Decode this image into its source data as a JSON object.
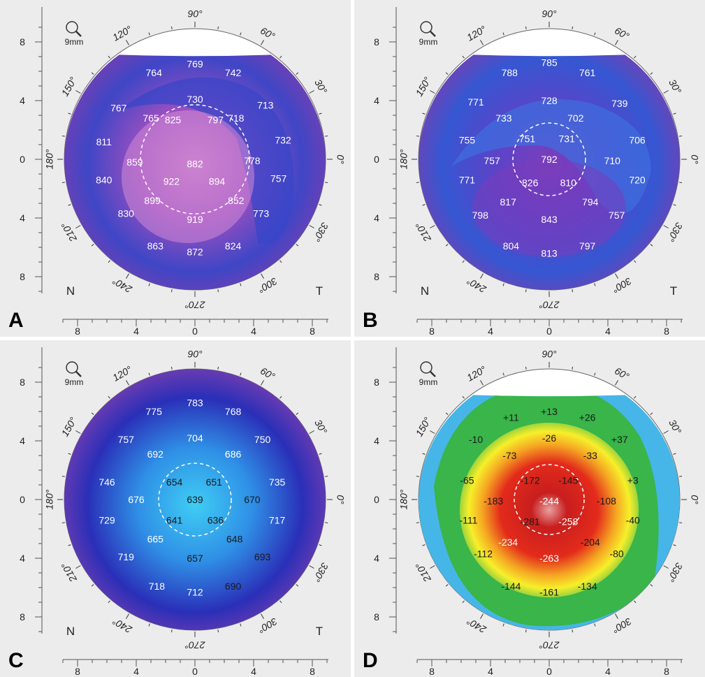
{
  "colors": {
    "panel_bg": "#ececec",
    "ruler": "#555555",
    "dashed_circle": "#ffffff",
    "value_light": "#ffffff",
    "value_dark": "#1a1a1a"
  },
  "common": {
    "zoom_label": "9mm",
    "zoom_icon": "magnifier-icon",
    "nasal_label": "N",
    "temporal_label": "T",
    "angle_labels": [
      "90°",
      "120°",
      "150°",
      "180°",
      "210°",
      "240°",
      "270°",
      "300°",
      "330°",
      "0°",
      "30°",
      "60°"
    ],
    "ruler_labels": [
      "8",
      "4",
      "0",
      "4",
      "8"
    ]
  },
  "panels": [
    {
      "id": "A",
      "label": "A",
      "map_type": "thickness",
      "value_color": "light",
      "show_nt": true,
      "missing_top_arc": true,
      "colors": {
        "center": "#c479c9",
        "mid": "#9a4fc0",
        "edge": "#7a3fb0",
        "band": "#3f46c6"
      },
      "values": [
        {
          "v": "769",
          "x": 0,
          "y": 6.5
        },
        {
          "v": "764",
          "x": -2.8,
          "y": 5.9
        },
        {
          "v": "742",
          "x": 2.6,
          "y": 5.9
        },
        {
          "v": "767",
          "x": -5.2,
          "y": 3.5
        },
        {
          "v": "730",
          "x": 0,
          "y": 4.1
        },
        {
          "v": "713",
          "x": 4.8,
          "y": 3.7
        },
        {
          "v": "765",
          "x": -3.0,
          "y": 2.8
        },
        {
          "v": "718",
          "x": 2.8,
          "y": 2.8
        },
        {
          "v": "811",
          "x": -6.2,
          "y": 1.2
        },
        {
          "v": "825",
          "x": -1.5,
          "y": 2.7
        },
        {
          "v": "797",
          "x": 1.4,
          "y": 2.7
        },
        {
          "v": "732",
          "x": 6.0,
          "y": 1.3
        },
        {
          "v": "859",
          "x": -4.1,
          "y": -0.2
        },
        {
          "v": "882",
          "x": 0,
          "y": -0.3
        },
        {
          "v": "778",
          "x": 3.9,
          "y": -0.1
        },
        {
          "v": "840",
          "x": -6.2,
          "y": -1.4
        },
        {
          "v": "922",
          "x": -1.6,
          "y": -1.5
        },
        {
          "v": "894",
          "x": 1.5,
          "y": -1.5
        },
        {
          "v": "757",
          "x": 5.7,
          "y": -1.3
        },
        {
          "v": "899",
          "x": -2.9,
          "y": -2.8
        },
        {
          "v": "852",
          "x": 2.8,
          "y": -2.8
        },
        {
          "v": "830",
          "x": -4.7,
          "y": -3.7
        },
        {
          "v": "919",
          "x": 0,
          "y": -4.1
        },
        {
          "v": "773",
          "x": 4.5,
          "y": -3.7
        },
        {
          "v": "863",
          "x": -2.7,
          "y": -5.9
        },
        {
          "v": "872",
          "x": 0,
          "y": -6.3
        },
        {
          "v": "824",
          "x": 2.6,
          "y": -5.9
        }
      ]
    },
    {
      "id": "B",
      "label": "B",
      "map_type": "thickness",
      "value_color": "light",
      "show_nt": true,
      "missing_top_arc": true,
      "colors": {
        "center": "#7a3fbc",
        "mid": "#5a44c8",
        "edge": "#7a3fb0",
        "band": "#3557d2"
      },
      "values": [
        {
          "v": "785",
          "x": 0,
          "y": 6.6
        },
        {
          "v": "788",
          "x": -2.7,
          "y": 5.9
        },
        {
          "v": "761",
          "x": 2.6,
          "y": 5.9
        },
        {
          "v": "771",
          "x": -5.0,
          "y": 3.9
        },
        {
          "v": "728",
          "x": 0,
          "y": 4.0
        },
        {
          "v": "739",
          "x": 4.8,
          "y": 3.8
        },
        {
          "v": "733",
          "x": -3.1,
          "y": 2.8
        },
        {
          "v": "702",
          "x": 1.8,
          "y": 2.8
        },
        {
          "v": "755",
          "x": -5.6,
          "y": 1.3
        },
        {
          "v": "751",
          "x": -1.5,
          "y": 1.4
        },
        {
          "v": "731",
          "x": 1.2,
          "y": 1.4
        },
        {
          "v": "706",
          "x": 6.0,
          "y": 1.3
        },
        {
          "v": "757",
          "x": -3.9,
          "y": -0.1
        },
        {
          "v": "792",
          "x": 0,
          "y": 0.0
        },
        {
          "v": "710",
          "x": 4.3,
          "y": -0.1
        },
        {
          "v": "771",
          "x": -5.6,
          "y": -1.4
        },
        {
          "v": "826",
          "x": -1.3,
          "y": -1.6
        },
        {
          "v": "810",
          "x": 1.3,
          "y": -1.6
        },
        {
          "v": "720",
          "x": 6.0,
          "y": -1.4
        },
        {
          "v": "817",
          "x": -2.8,
          "y": -2.9
        },
        {
          "v": "794",
          "x": 2.8,
          "y": -2.9
        },
        {
          "v": "798",
          "x": -4.7,
          "y": -3.8
        },
        {
          "v": "843",
          "x": 0,
          "y": -4.1
        },
        {
          "v": "757",
          "x": 4.6,
          "y": -3.8
        },
        {
          "v": "804",
          "x": -2.6,
          "y": -5.9
        },
        {
          "v": "813",
          "x": 0,
          "y": -6.4
        },
        {
          "v": "797",
          "x": 2.6,
          "y": -5.9
        }
      ]
    },
    {
      "id": "C",
      "label": "C",
      "map_type": "thickness",
      "value_color": "mixed",
      "show_nt": true,
      "missing_top_arc": false,
      "colors": {
        "center": "#3fcdf4",
        "mid": "#2f8fe6",
        "edge": "#7a3fb0",
        "band": "#2a2fb8"
      },
      "values": [
        {
          "v": "783",
          "x": 0,
          "y": 6.6,
          "c": "light"
        },
        {
          "v": "775",
          "x": -2.8,
          "y": 6.0,
          "c": "light"
        },
        {
          "v": "768",
          "x": 2.6,
          "y": 6.0,
          "c": "light"
        },
        {
          "v": "757",
          "x": -4.7,
          "y": 4.1,
          "c": "light"
        },
        {
          "v": "704",
          "x": 0,
          "y": 4.2,
          "c": "light"
        },
        {
          "v": "750",
          "x": 4.6,
          "y": 4.1,
          "c": "light"
        },
        {
          "v": "692",
          "x": -2.7,
          "y": 3.1,
          "c": "light"
        },
        {
          "v": "686",
          "x": 2.6,
          "y": 3.1,
          "c": "light"
        },
        {
          "v": "746",
          "x": -6.0,
          "y": 1.2,
          "c": "light"
        },
        {
          "v": "654",
          "x": -1.4,
          "y": 1.2,
          "c": "dark"
        },
        {
          "v": "651",
          "x": 1.3,
          "y": 1.2,
          "c": "dark"
        },
        {
          "v": "735",
          "x": 5.6,
          "y": 1.2,
          "c": "light"
        },
        {
          "v": "676",
          "x": -4.0,
          "y": 0,
          "c": "light"
        },
        {
          "v": "639",
          "x": 0,
          "y": 0,
          "c": "dark"
        },
        {
          "v": "670",
          "x": 3.9,
          "y": 0,
          "c": "dark"
        },
        {
          "v": "729",
          "x": -6.0,
          "y": -1.4,
          "c": "light"
        },
        {
          "v": "641",
          "x": -1.4,
          "y": -1.4,
          "c": "dark"
        },
        {
          "v": "636",
          "x": 1.4,
          "y": -1.4,
          "c": "dark"
        },
        {
          "v": "717",
          "x": 5.6,
          "y": -1.4,
          "c": "light"
        },
        {
          "v": "665",
          "x": -2.7,
          "y": -2.7,
          "c": "light"
        },
        {
          "v": "648",
          "x": 2.7,
          "y": -2.7,
          "c": "dark"
        },
        {
          "v": "719",
          "x": -4.7,
          "y": -3.9,
          "c": "light"
        },
        {
          "v": "657",
          "x": 0,
          "y": -4.0,
          "c": "dark"
        },
        {
          "v": "693",
          "x": 4.6,
          "y": -3.9,
          "c": "dark"
        },
        {
          "v": "718",
          "x": -2.6,
          "y": -5.9,
          "c": "light"
        },
        {
          "v": "712",
          "x": 0,
          "y": -6.3,
          "c": "light"
        },
        {
          "v": "690",
          "x": 2.6,
          "y": -5.9,
          "c": "dark"
        }
      ]
    },
    {
      "id": "D",
      "label": "D",
      "map_type": "difference",
      "value_color": "mixed",
      "show_nt": false,
      "missing_top_arc": true,
      "values": [
        {
          "v": "+11",
          "x": -2.6,
          "y": 5.6,
          "c": "dark"
        },
        {
          "v": "+13",
          "x": 0,
          "y": 6.0,
          "c": "dark"
        },
        {
          "v": "+26",
          "x": 2.6,
          "y": 5.6,
          "c": "dark"
        },
        {
          "v": "-10",
          "x": -5.0,
          "y": 4.1,
          "c": "dark"
        },
        {
          "v": "-26",
          "x": 0,
          "y": 4.2,
          "c": "dark"
        },
        {
          "v": "+37",
          "x": 4.8,
          "y": 4.1,
          "c": "dark"
        },
        {
          "v": "-73",
          "x": -2.7,
          "y": 3.0,
          "c": "dark"
        },
        {
          "v": "-33",
          "x": 2.8,
          "y": 3.0,
          "c": "dark"
        },
        {
          "v": "-65",
          "x": -5.6,
          "y": 1.3,
          "c": "dark"
        },
        {
          "v": "-172",
          "x": -1.3,
          "y": 1.3,
          "c": "dark"
        },
        {
          "v": "-145",
          "x": 1.3,
          "y": 1.3,
          "c": "dark"
        },
        {
          "v": "+3",
          "x": 5.7,
          "y": 1.3,
          "c": "dark"
        },
        {
          "v": "-183",
          "x": -3.8,
          "y": -0.1,
          "c": "dark"
        },
        {
          "v": "-244",
          "x": 0,
          "y": -0.1,
          "c": "light"
        },
        {
          "v": "-108",
          "x": 3.9,
          "y": -0.1,
          "c": "dark"
        },
        {
          "v": "-111",
          "x": -5.5,
          "y": -1.4,
          "c": "dark"
        },
        {
          "v": "-281",
          "x": -1.3,
          "y": -1.5,
          "c": "dark"
        },
        {
          "v": "-258",
          "x": 1.3,
          "y": -1.5,
          "c": "light"
        },
        {
          "v": "-40",
          "x": 5.7,
          "y": -1.4,
          "c": "dark"
        },
        {
          "v": "-234",
          "x": -2.8,
          "y": -2.9,
          "c": "light"
        },
        {
          "v": "-204",
          "x": 2.8,
          "y": -2.9,
          "c": "dark"
        },
        {
          "v": "-112",
          "x": -4.5,
          "y": -3.7,
          "c": "dark"
        },
        {
          "v": "-263",
          "x": 0,
          "y": -4.0,
          "c": "light"
        },
        {
          "v": "-80",
          "x": 4.6,
          "y": -3.7,
          "c": "dark"
        },
        {
          "v": "-144",
          "x": -2.6,
          "y": -5.9,
          "c": "dark"
        },
        {
          "v": "-161",
          "x": 0,
          "y": -6.3,
          "c": "dark"
        },
        {
          "v": "-134",
          "x": 2.6,
          "y": -5.9,
          "c": "dark"
        }
      ]
    }
  ]
}
